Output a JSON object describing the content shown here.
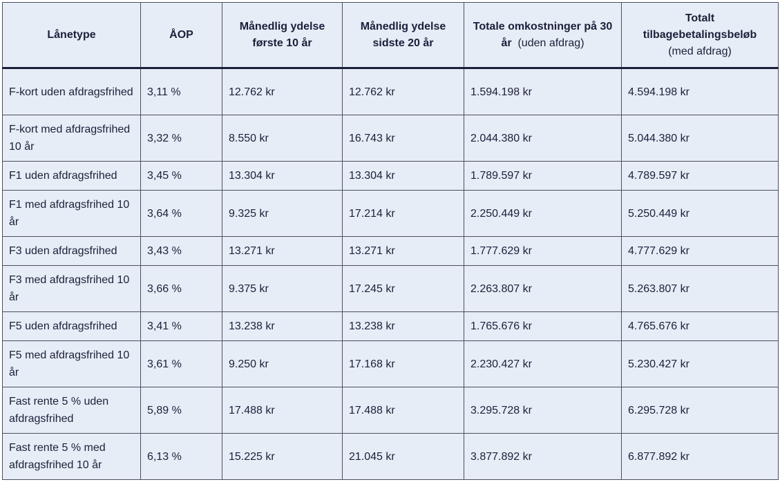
{
  "table": {
    "headers": [
      {
        "main": "Lånetype",
        "sub": ""
      },
      {
        "main": "ÅOP",
        "sub": ""
      },
      {
        "main": "Månedlig ydelse første 10 år",
        "sub": ""
      },
      {
        "main": "Månedlig ydelse sidste 20 år",
        "sub": ""
      },
      {
        "main": "Totale omkostninger på 30 år",
        "sub": "(uden afdrag)"
      },
      {
        "main": "Totalt tilbagebetalingsbeløb",
        "sub": "(med afdrag)"
      }
    ],
    "rows": [
      {
        "type": "F-kort uden afdragsfrihed",
        "aop": "3,11 %",
        "first10": "12.762 kr",
        "last20": "12.762 kr",
        "total_cost": "1.594.198 kr",
        "total_repay": "4.594.198 kr"
      },
      {
        "type": "F-kort med afdragsfrihed 10 år",
        "aop": "3,32 %",
        "first10": "8.550 kr",
        "last20": "16.743 kr",
        "total_cost": "2.044.380 kr",
        "total_repay": "5.044.380 kr"
      },
      {
        "type": "F1 uden afdragsfrihed",
        "aop": "3,45 %",
        "first10": "13.304 kr",
        "last20": "13.304 kr",
        "total_cost": "1.789.597 kr",
        "total_repay": "4.789.597 kr"
      },
      {
        "type": "F1 med afdragsfrihed 10 år",
        "aop": "3,64 %",
        "first10": "9.325 kr",
        "last20": "17.214 kr",
        "total_cost": "2.250.449 kr",
        "total_repay": "5.250.449 kr"
      },
      {
        "type": "F3 uden afdragsfrihed",
        "aop": "3,43 %",
        "first10": "13.271 kr",
        "last20": "13.271 kr",
        "total_cost": "1.777.629 kr",
        "total_repay": "4.777.629 kr"
      },
      {
        "type": "F3 med afdragsfrihed 10 år",
        "aop": "3,66 %",
        "first10": "9.375 kr",
        "last20": "17.245 kr",
        "total_cost": "2.263.807 kr",
        "total_repay": "5.263.807 kr"
      },
      {
        "type": "F5 uden afdragsfrihed",
        "aop": "3,41 %",
        "first10": "13.238 kr",
        "last20": "13.238 kr",
        "total_cost": "1.765.676 kr",
        "total_repay": "4.765.676 kr"
      },
      {
        "type": "F5 med afdragsfrihed 10 år",
        "aop": "3,61 %",
        "first10": "9.250 kr",
        "last20": "17.168 kr",
        "total_cost": "2.230.427 kr",
        "total_repay": "5.230.427 kr"
      },
      {
        "type": "Fast rente 5 % uden afdragsfrihed",
        "aop": "5,89 %",
        "first10": "17.488 kr",
        "last20": "17.488 kr",
        "total_cost": "3.295.728 kr",
        "total_repay": "6.295.728 kr"
      },
      {
        "type": "Fast rente 5 % med afdragsfrihed 10 år",
        "aop": "6,13 %",
        "first10": "15.225 kr",
        "last20": "21.045 kr",
        "total_cost": "3.877.892 kr",
        "total_repay": "6.877.892 kr"
      }
    ]
  }
}
